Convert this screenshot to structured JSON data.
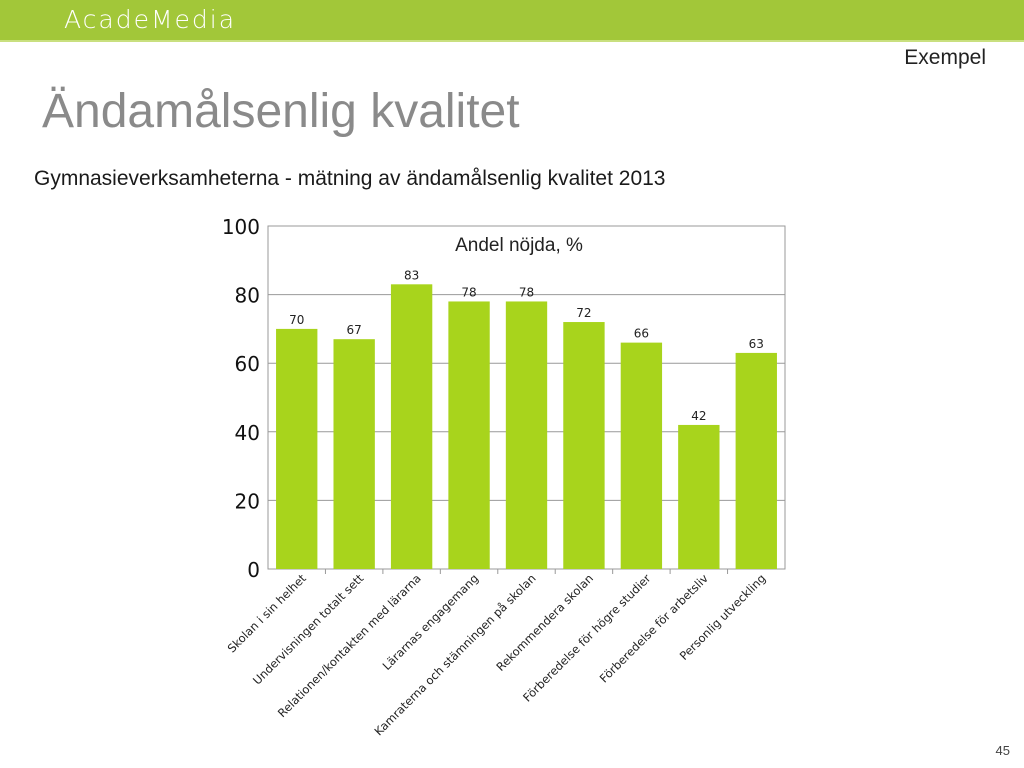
{
  "header": {
    "logo_text": "AcadeMedia"
  },
  "slide": {
    "tag": "Exempel",
    "title": "Ändamålsenlig kvalitet",
    "subtitle": "Gymnasieverksamheterna  - mätning av ändamålsenlig kvalitet 2013",
    "page_number": "45"
  },
  "colors": {
    "brand_green": "#a2c739",
    "bar": "#a8d41c",
    "grid": "#999999"
  },
  "chart_data": {
    "type": "bar",
    "title": "Andel nöjda, %",
    "xlabel": "",
    "ylabel": "",
    "ylim": [
      0,
      100
    ],
    "yticks": [
      0,
      20,
      40,
      60,
      80,
      100
    ],
    "grid": true,
    "categories": [
      "Skolan i sin helhet",
      "Undervisningen totalt sett",
      "Relationen/kontakten med lärarna",
      "Lärarnas engagemang",
      "Kamraterna och stämningen på skolan",
      "Rekommendera skolan",
      "Förberedelse för högre studier",
      "Förberedelse för arbetsliv",
      "Personlig utveckling"
    ],
    "values": [
      70,
      67,
      83,
      78,
      78,
      72,
      66,
      42,
      63
    ]
  }
}
